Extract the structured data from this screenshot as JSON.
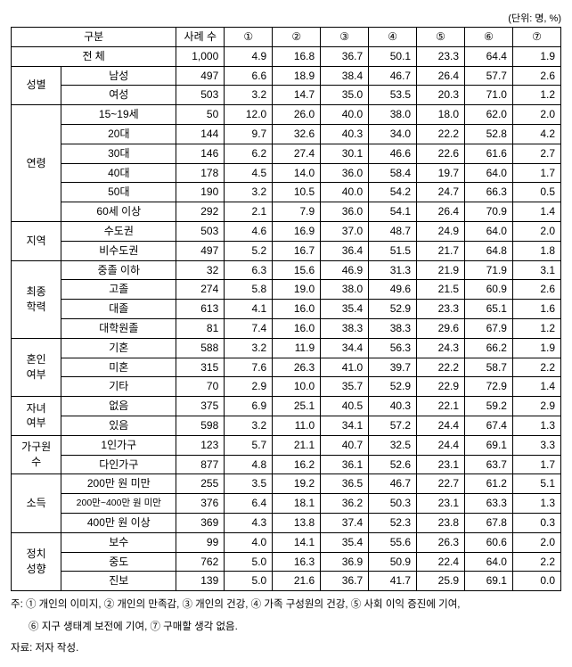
{
  "unit_label": "(단위: 명, %)",
  "header": {
    "group": "구분",
    "n": "사례 수",
    "cols": [
      "①",
      "②",
      "③",
      "④",
      "⑤",
      "⑥",
      "⑦"
    ]
  },
  "total": {
    "label": "전 체",
    "n": "1,000",
    "v": [
      "4.9",
      "16.8",
      "36.7",
      "50.1",
      "23.3",
      "64.4",
      "1.9"
    ]
  },
  "groups": [
    {
      "name": "성별",
      "rows": [
        {
          "label": "남성",
          "n": "497",
          "v": [
            "6.6",
            "18.9",
            "38.4",
            "46.7",
            "26.4",
            "57.7",
            "2.6"
          ]
        },
        {
          "label": "여성",
          "n": "503",
          "v": [
            "3.2",
            "14.7",
            "35.0",
            "53.5",
            "20.3",
            "71.0",
            "1.2"
          ]
        }
      ]
    },
    {
      "name": "연령",
      "rows": [
        {
          "label": "15~19세",
          "n": "50",
          "v": [
            "12.0",
            "26.0",
            "40.0",
            "38.0",
            "18.0",
            "62.0",
            "2.0"
          ]
        },
        {
          "label": "20대",
          "n": "144",
          "v": [
            "9.7",
            "32.6",
            "40.3",
            "34.0",
            "22.2",
            "52.8",
            "4.2"
          ]
        },
        {
          "label": "30대",
          "n": "146",
          "v": [
            "6.2",
            "27.4",
            "30.1",
            "46.6",
            "22.6",
            "61.6",
            "2.7"
          ]
        },
        {
          "label": "40대",
          "n": "178",
          "v": [
            "4.5",
            "14.0",
            "36.0",
            "58.4",
            "19.7",
            "64.0",
            "1.7"
          ]
        },
        {
          "label": "50대",
          "n": "190",
          "v": [
            "3.2",
            "10.5",
            "40.0",
            "54.2",
            "24.7",
            "66.3",
            "0.5"
          ]
        },
        {
          "label": "60세 이상",
          "n": "292",
          "v": [
            "2.1",
            "7.9",
            "36.0",
            "54.1",
            "26.4",
            "70.9",
            "1.4"
          ]
        }
      ]
    },
    {
      "name": "지역",
      "rows": [
        {
          "label": "수도권",
          "n": "503",
          "v": [
            "4.6",
            "16.9",
            "37.0",
            "48.7",
            "24.9",
            "64.0",
            "2.0"
          ]
        },
        {
          "label": "비수도권",
          "n": "497",
          "v": [
            "5.2",
            "16.7",
            "36.4",
            "51.5",
            "21.7",
            "64.8",
            "1.8"
          ]
        }
      ]
    },
    {
      "name": "최종\n학력",
      "rows": [
        {
          "label": "중졸 이하",
          "n": "32",
          "v": [
            "6.3",
            "15.6",
            "46.9",
            "31.3",
            "21.9",
            "71.9",
            "3.1"
          ]
        },
        {
          "label": "고졸",
          "n": "274",
          "v": [
            "5.8",
            "19.0",
            "38.0",
            "49.6",
            "21.5",
            "60.9",
            "2.6"
          ]
        },
        {
          "label": "대졸",
          "n": "613",
          "v": [
            "4.1",
            "16.0",
            "35.4",
            "52.9",
            "23.3",
            "65.1",
            "1.6"
          ]
        },
        {
          "label": "대학원졸",
          "n": "81",
          "v": [
            "7.4",
            "16.0",
            "38.3",
            "38.3",
            "29.6",
            "67.9",
            "1.2"
          ]
        }
      ]
    },
    {
      "name": "혼인\n여부",
      "rows": [
        {
          "label": "기혼",
          "n": "588",
          "v": [
            "3.2",
            "11.9",
            "34.4",
            "56.3",
            "24.3",
            "66.2",
            "1.9"
          ]
        },
        {
          "label": "미혼",
          "n": "315",
          "v": [
            "7.6",
            "26.3",
            "41.0",
            "39.7",
            "22.2",
            "58.7",
            "2.2"
          ]
        },
        {
          "label": "기타",
          "n": "70",
          "v": [
            "2.9",
            "10.0",
            "35.7",
            "52.9",
            "22.9",
            "72.9",
            "1.4"
          ]
        }
      ]
    },
    {
      "name": "자녀\n여부",
      "rows": [
        {
          "label": "없음",
          "n": "375",
          "v": [
            "6.9",
            "25.1",
            "40.5",
            "40.3",
            "22.1",
            "59.2",
            "2.9"
          ]
        },
        {
          "label": "있음",
          "n": "598",
          "v": [
            "3.2",
            "11.0",
            "34.1",
            "57.2",
            "24.4",
            "67.4",
            "1.3"
          ]
        }
      ]
    },
    {
      "name": "가구원\n수",
      "rows": [
        {
          "label": "1인가구",
          "n": "123",
          "v": [
            "5.7",
            "21.1",
            "40.7",
            "32.5",
            "24.4",
            "69.1",
            "3.3"
          ]
        },
        {
          "label": "다인가구",
          "n": "877",
          "v": [
            "4.8",
            "16.2",
            "36.1",
            "52.6",
            "23.1",
            "63.7",
            "1.7"
          ]
        }
      ]
    },
    {
      "name": "소득",
      "rows": [
        {
          "label": "200만 원 미만",
          "n": "255",
          "v": [
            "3.5",
            "19.2",
            "36.5",
            "46.7",
            "22.7",
            "61.2",
            "5.1"
          ]
        },
        {
          "label": "200만~400만 원 미만",
          "n": "376",
          "v": [
            "6.4",
            "18.1",
            "36.2",
            "50.3",
            "23.1",
            "63.3",
            "1.3"
          ]
        },
        {
          "label": "400만 원 이상",
          "n": "369",
          "v": [
            "4.3",
            "13.8",
            "37.4",
            "52.3",
            "23.8",
            "67.8",
            "0.3"
          ]
        }
      ]
    },
    {
      "name": "정치\n성향",
      "rows": [
        {
          "label": "보수",
          "n": "99",
          "v": [
            "4.0",
            "14.1",
            "35.4",
            "55.6",
            "26.3",
            "60.6",
            "2.0"
          ]
        },
        {
          "label": "중도",
          "n": "762",
          "v": [
            "5.0",
            "16.3",
            "36.9",
            "50.9",
            "22.4",
            "64.0",
            "2.2"
          ]
        },
        {
          "label": "진보",
          "n": "139",
          "v": [
            "5.0",
            "21.6",
            "36.7",
            "41.7",
            "25.9",
            "69.1",
            "0.0"
          ]
        }
      ]
    }
  ],
  "notes": {
    "line1": "주: ① 개인의 이미지, ② 개인의 만족감, ③ 개인의 건강, ④ 가족 구성원의 건강, ⑤ 사회 이익 증진에 기여,",
    "line2": "⑥ 지구 생태계 보전에 기여, ⑦ 구매할 생각 없음.",
    "source": "자료: 저자 작성."
  }
}
